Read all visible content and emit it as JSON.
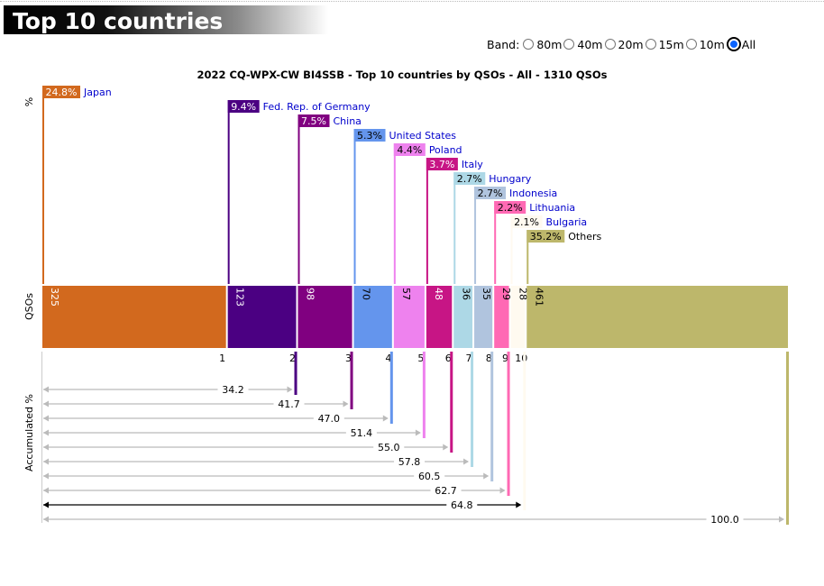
{
  "header": {
    "title": "Top 10 countries"
  },
  "band_selector": {
    "label": "Band:",
    "options": [
      "80m",
      "40m",
      "20m",
      "15m",
      "10m",
      "All"
    ],
    "selected": "All"
  },
  "chart_data": {
    "type": "bar",
    "title": "2022 CQ-WPX-CW BI4SSB - Top 10 countries by QSOs - All - 1310 QSOs",
    "total_qsos": 1310,
    "axis_labels": {
      "top": "%",
      "middle": "QSOs",
      "bottom": "Accumulated %"
    },
    "categories": [
      "Japan",
      "Fed. Rep. of Germany",
      "China",
      "United States",
      "Poland",
      "Italy",
      "Hungary",
      "Indonesia",
      "Lithuania",
      "Bulgaria",
      "Others"
    ],
    "ranks": [
      "1",
      "2",
      "3",
      "4",
      "5",
      "6",
      "7",
      "8",
      "9",
      "10",
      ""
    ],
    "qsos": [
      325,
      123,
      98,
      70,
      57,
      48,
      36,
      35,
      29,
      28,
      461
    ],
    "qso_labels": [
      "325",
      "123",
      "98",
      "70",
      "57",
      "48",
      "36",
      "35",
      "29",
      "28",
      "461"
    ],
    "percents": [
      24.8,
      9.4,
      7.5,
      5.3,
      4.4,
      3.7,
      2.7,
      2.7,
      2.2,
      2.1,
      35.2
    ],
    "percent_labels": [
      "24.8%",
      "9.4%",
      "7.5%",
      "5.3%",
      "4.4%",
      "3.7%",
      "2.7%",
      "2.7%",
      "2.2%",
      "2.1%",
      "35.2%"
    ],
    "accumulated": [
      34.2,
      41.7,
      47.0,
      51.4,
      55.0,
      57.8,
      60.5,
      62.7,
      64.8,
      100.0
    ],
    "accumulated_labels": [
      "34.2",
      "41.7",
      "47.0",
      "51.4",
      "55.0",
      "57.8",
      "60.5",
      "62.7",
      "64.8",
      "100.0"
    ],
    "colors": [
      "#d2691e",
      "#4b0082",
      "#800080",
      "#6495ed",
      "#ee82ee",
      "#c71585",
      "#add8e6",
      "#b0c4de",
      "#ff69b4",
      "#fffaf0",
      "#bdb76b"
    ],
    "label_text_colors": [
      "#ffffff",
      "#ffffff",
      "#ffffff",
      "#000000",
      "#000000",
      "#ffffff",
      "#000000",
      "#000000",
      "#000000",
      "#000000",
      "#000000"
    ],
    "name_color": "#0000cc",
    "highlight_accumulated_index": 8
  }
}
